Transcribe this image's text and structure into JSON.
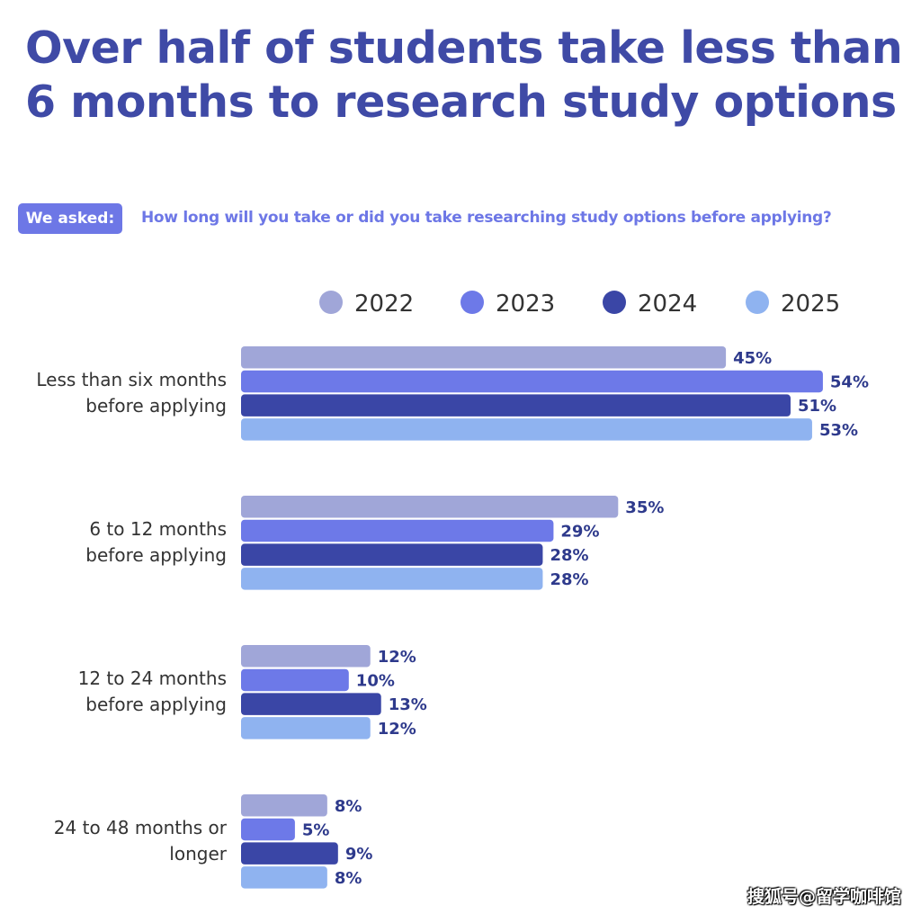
{
  "header": {
    "title": "Over half of students take less than 6 months to research study options",
    "asked_label": "We asked:",
    "question": "How long will you take or did you take researching study options before applying?"
  },
  "watermark": "搜狐号@留学咖啡馆",
  "chart_data": {
    "type": "bar",
    "orientation": "horizontal",
    "categories": [
      [
        "Less than six months",
        "before applying"
      ],
      [
        "6 to 12 months",
        "before applying"
      ],
      [
        "12 to 24 months",
        "before applying"
      ],
      [
        "24 to 48 months or",
        "longer"
      ]
    ],
    "series": [
      {
        "name": "2022",
        "color": "#a0a6d8",
        "values": [
          45,
          35,
          12,
          8
        ]
      },
      {
        "name": "2023",
        "color": "#6d79e8",
        "values": [
          54,
          29,
          10,
          5
        ]
      },
      {
        "name": "2024",
        "color": "#3a46a6",
        "values": [
          51,
          28,
          13,
          9
        ]
      },
      {
        "name": "2025",
        "color": "#8fb3f0",
        "values": [
          53,
          28,
          12,
          8
        ]
      }
    ],
    "value_suffix": "%",
    "xlim": [
      0,
      60
    ],
    "grid": false,
    "legend_position": "top-right"
  }
}
